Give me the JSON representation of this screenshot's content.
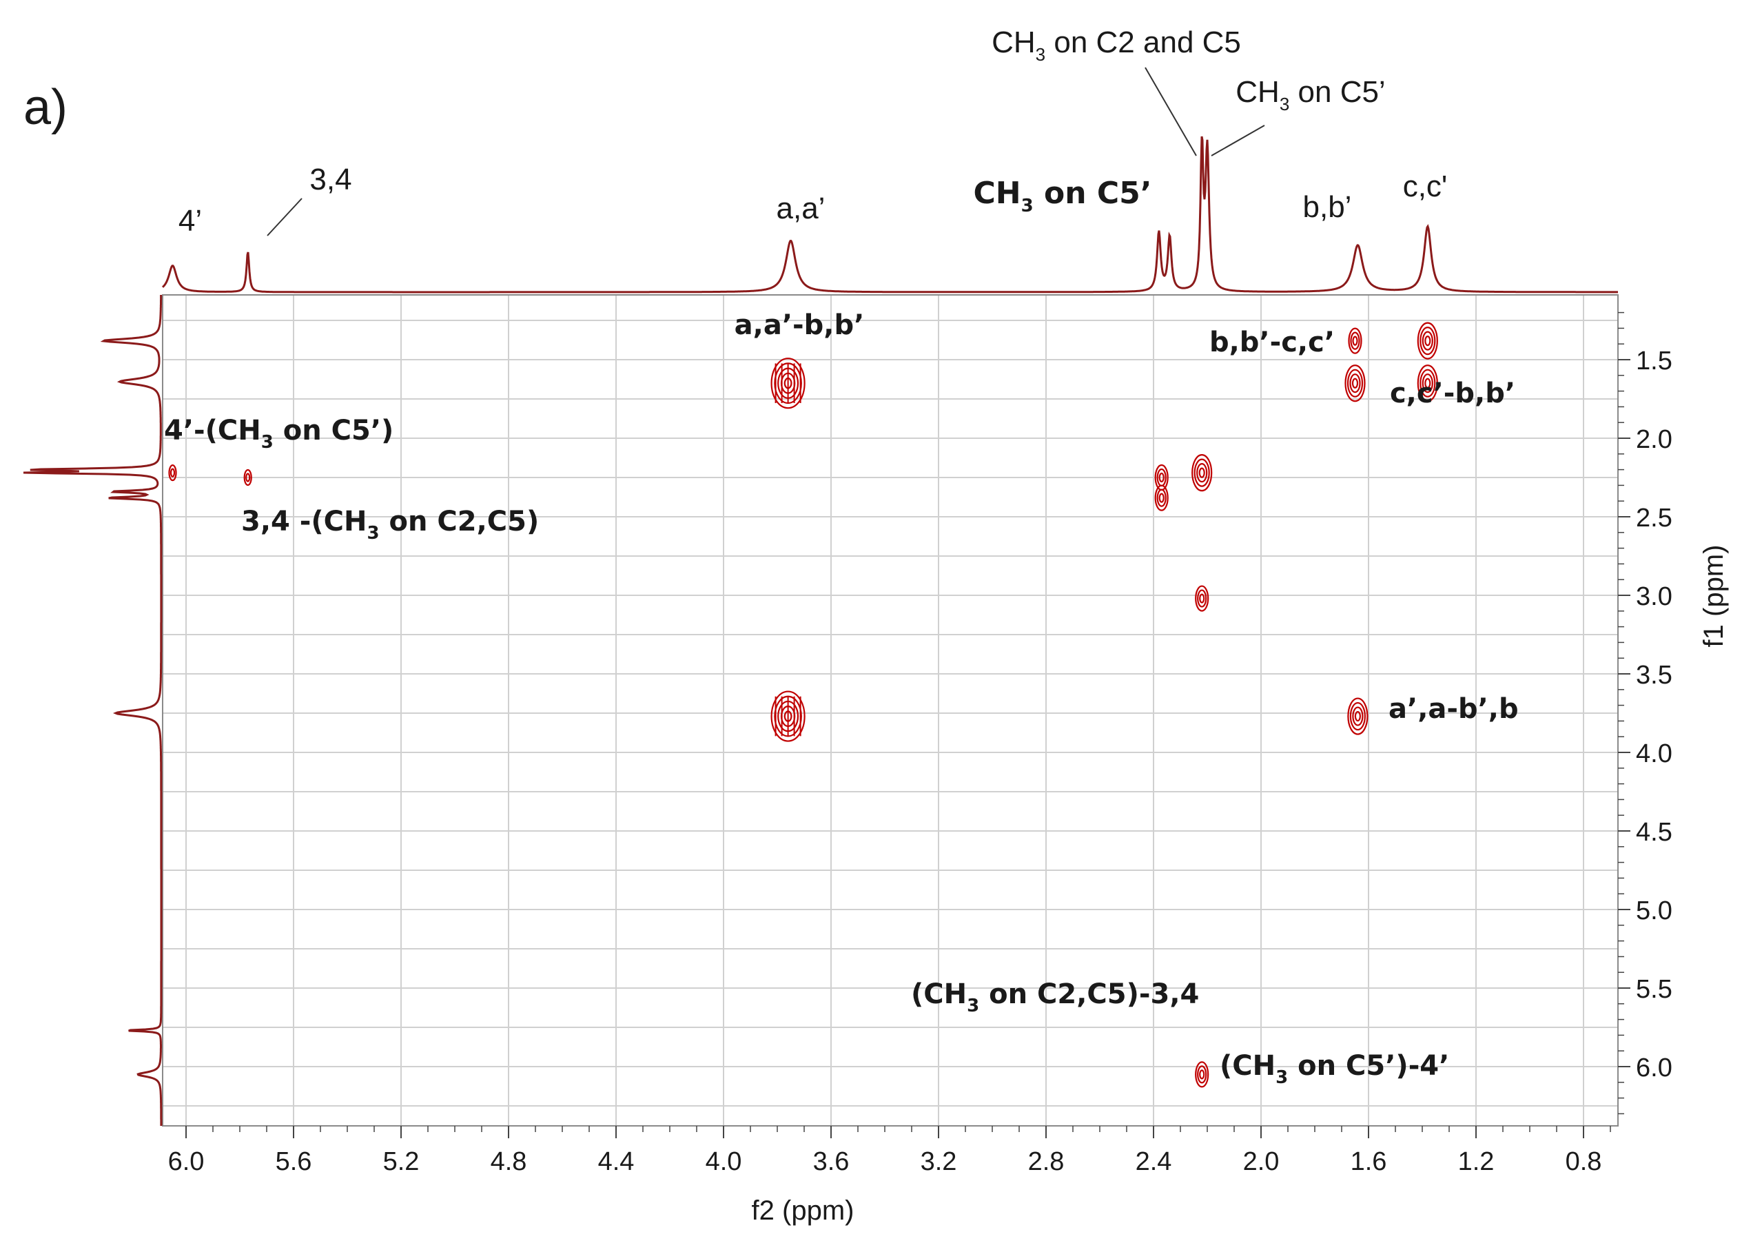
{
  "panel_label": "a)",
  "chart_data": {
    "type": "2D NMR COSY contour plot",
    "xlabel": "f2 (ppm)",
    "ylabel": "f1 (ppm)",
    "xlim": [
      6.2,
      0.6
    ],
    "ylim": [
      1.1,
      6.4
    ],
    "x_ticks": [
      "6.0",
      "5.6",
      "5.2",
      "4.8",
      "4.4",
      "4.0",
      "3.6",
      "3.2",
      "2.8",
      "2.4",
      "2.0",
      "1.6",
      "1.2",
      "0.8"
    ],
    "y_ticks": [
      "1.5",
      "2.0",
      "2.5",
      "3.0",
      "3.5",
      "4.0",
      "4.5",
      "5.0",
      "5.5",
      "6.0"
    ],
    "grid": true,
    "projection_peaks": [
      {
        "shift": 6.05,
        "height": 0.17,
        "width": 0.018
      },
      {
        "shift": 5.77,
        "height": 0.26,
        "width": 0.006
      },
      {
        "shift": 3.75,
        "height": 0.33,
        "width": 0.022
      },
      {
        "shift": 2.38,
        "height": 0.38,
        "width": 0.008
      },
      {
        "shift": 2.34,
        "height": 0.35,
        "width": 0.008
      },
      {
        "shift": 2.22,
        "height": 0.92,
        "width": 0.006
      },
      {
        "shift": 2.2,
        "height": 0.9,
        "width": 0.008
      },
      {
        "shift": 1.64,
        "height": 0.3,
        "width": 0.022
      },
      {
        "shift": 1.38,
        "height": 0.42,
        "width": 0.016
      }
    ],
    "cross_peaks": [
      {
        "f2": 3.76,
        "f1": 1.65,
        "size": "large"
      },
      {
        "f2": 3.76,
        "f1": 3.77,
        "size": "large"
      },
      {
        "f2": 1.38,
        "f1": 1.38,
        "size": "medium"
      },
      {
        "f2": 1.38,
        "f1": 1.65,
        "size": "medium"
      },
      {
        "f2": 1.65,
        "f1": 1.38,
        "size": "small"
      },
      {
        "f2": 1.65,
        "f1": 1.65,
        "size": "medium"
      },
      {
        "f2": 1.64,
        "f1": 3.77,
        "size": "medium"
      },
      {
        "f2": 2.22,
        "f1": 2.22,
        "size": "medium"
      },
      {
        "f2": 2.22,
        "f1": 3.02,
        "size": "small"
      },
      {
        "f2": 2.22,
        "f1": 6.05,
        "size": "small"
      },
      {
        "f2": 2.37,
        "f1": 2.25,
        "size": "small"
      },
      {
        "f2": 2.37,
        "f1": 2.38,
        "size": "small"
      },
      {
        "f2": 6.05,
        "f1": 2.22,
        "size": "tiny"
      },
      {
        "f2": 5.77,
        "f1": 2.25,
        "size": "tiny"
      }
    ],
    "peak_labels": [
      {
        "id": "pk-4p",
        "text": "4’"
      },
      {
        "id": "pk-34",
        "text": "3,4"
      },
      {
        "id": "pk-aa",
        "text": "a,a’"
      },
      {
        "id": "pk-ch3-c5p-bold",
        "pre": "CH",
        "sub": "3",
        "post": " on C5’"
      },
      {
        "id": "pk-ch3-c2c5",
        "pre": "CH",
        "sub": "3",
        "post": " on C2 and C5"
      },
      {
        "id": "pk-ch3-c5p",
        "pre": "CH",
        "sub": "3",
        "post": " on C5’"
      },
      {
        "id": "pk-bb",
        "text": "b,b’"
      },
      {
        "id": "pk-cc",
        "text": "c,c'"
      }
    ],
    "cross_labels": [
      {
        "id": "xl-aa-bb",
        "text": "a,a’-b,b’"
      },
      {
        "id": "xl-bb-cc",
        "text": "b,b’-c,c’"
      },
      {
        "id": "xl-cc-bb",
        "text": "c,c’-b,b’"
      },
      {
        "id": "xl-4p-ch3",
        "pre": "4’-(CH",
        "sub": "3",
        "post": " on C5’)"
      },
      {
        "id": "xl-34-ch3",
        "pre": "3,4 -(CH",
        "sub": "3",
        "post": " on C2,C5)"
      },
      {
        "id": "xl-ap-bp",
        "text": "a’,a-b’,b"
      },
      {
        "id": "xl-ch3-34",
        "pre": "(CH",
        "sub": "3",
        "post": " on C2,C5)-3,4"
      },
      {
        "id": "xl-ch3-4p",
        "pre": "(CH",
        "sub": "3",
        "post": " on C5’)-4’"
      }
    ],
    "colors": {
      "trace": "#8b1a1a",
      "contour": "#c00000",
      "grid": "#d0d0d0",
      "frame": "#8a8a8a"
    }
  }
}
